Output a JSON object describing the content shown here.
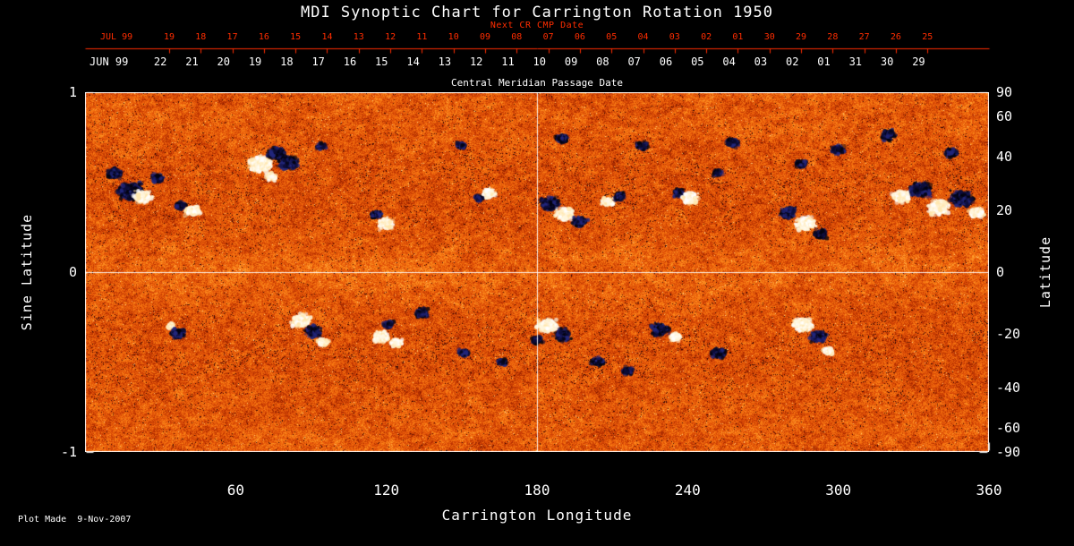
{
  "page": {
    "title": "MDI Synoptic Chart for Carrington Rotation 1950",
    "plot_made": "Plot Made  9-Nov-2007",
    "background": "#000000",
    "axis_color": "#ffffff"
  },
  "chart_data": {
    "type": "heatmap",
    "title": "MDI Synoptic Chart for Carrington Rotation 1950",
    "description": "Solar magnetogram synoptic map: quiet-sun orange mottle with white (positive) and dark blue/black (negative) magnetic active regions",
    "xlabel": "Carrington Longitude",
    "ylabel_left": "Sine Latitude",
    "ylabel_right": "Latitude",
    "xlim": [
      0,
      360
    ],
    "ylim_sine_latitude": [
      -1,
      1
    ],
    "grid": false,
    "x_major_ticks": [
      60,
      120,
      180,
      240,
      300,
      360
    ],
    "x_minor_tick_step": 20,
    "y_left_ticks": [
      1,
      0,
      -1
    ],
    "y_left_minor_ticks": [
      0.5,
      -0.5
    ],
    "y_right_ticks": [
      90,
      60,
      40,
      20,
      0,
      -20,
      -40,
      -60,
      -90
    ],
    "y_right_minor_step": 10,
    "crosshair": {
      "longitude": 180,
      "sine_latitude": 0
    },
    "top_axis_next_cr": {
      "label": "Next CR CMP Date",
      "month_label": "JUL 99",
      "days": [
        "19",
        "18",
        "17",
        "16",
        "15",
        "14",
        "13",
        "12",
        "11",
        "10",
        "09",
        "08",
        "07",
        "06",
        "05",
        "04",
        "03",
        "02",
        "01",
        "30",
        "29",
        "28",
        "27",
        "26",
        "25"
      ],
      "color": "#ff2d00",
      "day_lon_start": 33.5,
      "day_lon_step": 12.583
    },
    "top_axis_cmp": {
      "label": "Central Meridian Passage Date",
      "month_label": "JUN 99",
      "days": [
        "22",
        "21",
        "20",
        "19",
        "18",
        "17",
        "16",
        "15",
        "14",
        "13",
        "12",
        "11",
        "10",
        "09",
        "08",
        "07",
        "06",
        "05",
        "04",
        "03",
        "02",
        "01",
        "31",
        "30",
        "29"
      ],
      "color": "#ffffff",
      "day_lon_start": 30.0,
      "day_lon_step": 12.583
    },
    "palette": {
      "stops": [
        "#1a0208",
        "#6e1400",
        "#b73000",
        "#e05008",
        "#f4700e",
        "#ff9a28",
        "#ffd890"
      ],
      "positive_colors": [
        "#ffffff",
        "#fff6dc",
        "#ffe7ae"
      ],
      "negative_colors": [
        "#03030f",
        "#0d0d38",
        "#23277d"
      ]
    },
    "active_regions": [
      [
        18,
        0.45,
        15,
        "neg"
      ],
      [
        23,
        0.42,
        11,
        "pos"
      ],
      [
        29,
        0.52,
        8,
        "neg"
      ],
      [
        12,
        0.55,
        9,
        "neg"
      ],
      [
        38,
        0.37,
        7,
        "neg"
      ],
      [
        43,
        0.34,
        9,
        "pos"
      ],
      [
        70,
        0.6,
        14,
        "pos"
      ],
      [
        76,
        0.66,
        11,
        "neg"
      ],
      [
        81,
        0.61,
        12,
        "neg"
      ],
      [
        74,
        0.53,
        7,
        "pos"
      ],
      [
        94,
        0.7,
        6,
        "neg"
      ],
      [
        116,
        0.32,
        7,
        "neg"
      ],
      [
        120,
        0.27,
        10,
        "pos"
      ],
      [
        150,
        0.7,
        6,
        "neg"
      ],
      [
        157,
        0.41,
        6,
        "neg"
      ],
      [
        161,
        0.44,
        8,
        "pos"
      ],
      [
        185,
        0.38,
        12,
        "neg"
      ],
      [
        191,
        0.32,
        11,
        "pos"
      ],
      [
        197,
        0.28,
        9,
        "neg"
      ],
      [
        190,
        0.74,
        8,
        "neg"
      ],
      [
        208,
        0.39,
        8,
        "pos"
      ],
      [
        213,
        0.42,
        7,
        "neg"
      ],
      [
        222,
        0.7,
        7,
        "neg"
      ],
      [
        236,
        0.44,
        7,
        "neg"
      ],
      [
        241,
        0.41,
        10,
        "pos"
      ],
      [
        252,
        0.55,
        6,
        "neg"
      ],
      [
        258,
        0.72,
        8,
        "neg"
      ],
      [
        280,
        0.33,
        10,
        "neg"
      ],
      [
        287,
        0.27,
        12,
        "pos"
      ],
      [
        293,
        0.21,
        8,
        "neg"
      ],
      [
        285,
        0.6,
        7,
        "neg"
      ],
      [
        300,
        0.68,
        8,
        "neg"
      ],
      [
        320,
        0.76,
        9,
        "neg"
      ],
      [
        345,
        0.66,
        8,
        "neg"
      ],
      [
        325,
        0.42,
        11,
        "pos"
      ],
      [
        333,
        0.46,
        13,
        "neg"
      ],
      [
        340,
        0.36,
        13,
        "pos"
      ],
      [
        349,
        0.41,
        14,
        "neg"
      ],
      [
        355,
        0.33,
        9,
        "pos"
      ],
      [
        34,
        -0.3,
        5,
        "pos"
      ],
      [
        37,
        -0.34,
        9,
        "neg"
      ],
      [
        86,
        -0.27,
        12,
        "pos"
      ],
      [
        91,
        -0.33,
        10,
        "neg"
      ],
      [
        95,
        -0.39,
        7,
        "pos"
      ],
      [
        118,
        -0.36,
        10,
        "pos"
      ],
      [
        124,
        -0.39,
        8,
        "pos"
      ],
      [
        121,
        -0.29,
        7,
        "neg"
      ],
      [
        134,
        -0.23,
        8,
        "neg"
      ],
      [
        151,
        -0.45,
        7,
        "neg"
      ],
      [
        166,
        -0.5,
        6,
        "neg"
      ],
      [
        180,
        -0.38,
        7,
        "neg"
      ],
      [
        184,
        -0.3,
        12,
        "pos"
      ],
      [
        190,
        -0.35,
        10,
        "neg"
      ],
      [
        204,
        -0.5,
        8,
        "neg"
      ],
      [
        216,
        -0.55,
        7,
        "neg"
      ],
      [
        229,
        -0.32,
        11,
        "neg"
      ],
      [
        235,
        -0.36,
        8,
        "pos"
      ],
      [
        252,
        -0.45,
        9,
        "neg"
      ],
      [
        286,
        -0.29,
        12,
        "pos"
      ],
      [
        292,
        -0.36,
        10,
        "neg"
      ],
      [
        296,
        -0.44,
        7,
        "pos"
      ]
    ]
  }
}
